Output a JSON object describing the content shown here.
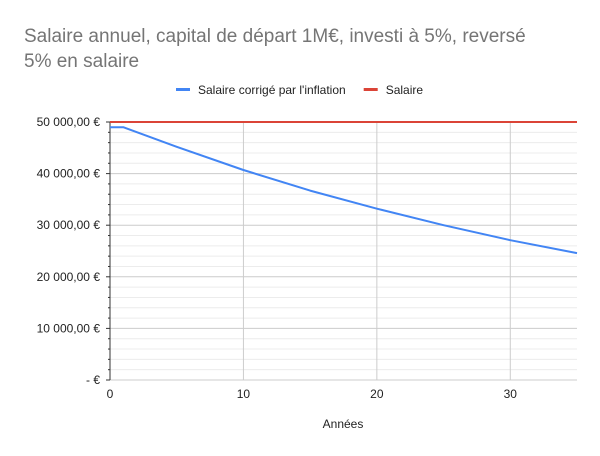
{
  "chart_data": {
    "type": "line",
    "title": "Salaire annuel, capital de départ 1M€, investi à 5%, reversé 5% en salaire",
    "title_lines": [
      "Salaire annuel, capital de départ 1M€, investi à 5%, reversé",
      "5% en salaire"
    ],
    "xlabel": "Années",
    "ylabel": "",
    "xlim": [
      0,
      35
    ],
    "ylim": [
      0,
      50000
    ],
    "x_ticks": [
      0,
      10,
      20,
      30
    ],
    "x_tick_labels": [
      "0",
      "10",
      "20",
      "30"
    ],
    "y_ticks": [
      0,
      10000,
      20000,
      30000,
      40000,
      50000
    ],
    "y_tick_labels": [
      "-   €",
      "10 000,00   €",
      "20 000,00   €",
      "30 000,00   €",
      "40 000,00   €",
      "50 000,00   €"
    ],
    "grid": true,
    "legend_position": "top",
    "series": [
      {
        "name": "Salaire corrigé par l'inflation",
        "color": "#4285f4",
        "x": [
          0,
          1,
          5,
          10,
          15,
          20,
          25,
          30,
          35
        ],
        "y": [
          49000,
          49000,
          45200,
          40700,
          36700,
          33200,
          30000,
          27100,
          24600
        ]
      },
      {
        "name": "Salaire",
        "color": "#db4437",
        "x": [
          0,
          35
        ],
        "y": [
          50000,
          50000
        ]
      }
    ]
  }
}
